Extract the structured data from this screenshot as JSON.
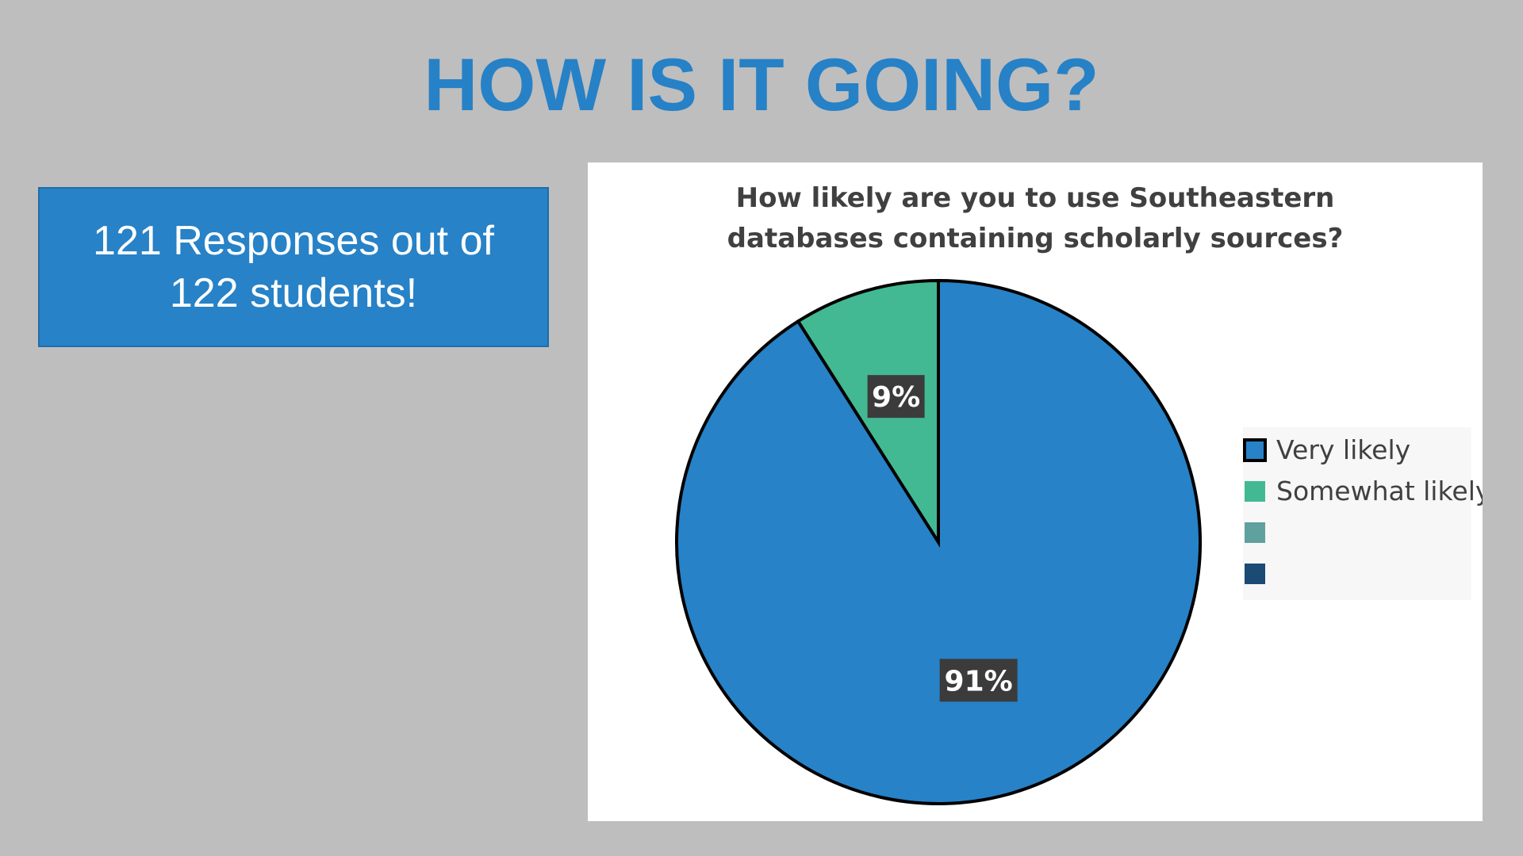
{
  "slide": {
    "title": "HOW IS IT GOING?",
    "responses_text": "121 Responses out of 122 students!"
  },
  "colors": {
    "background": "#bebebe",
    "accent": "#2681c7",
    "very_likely": "#2782c7",
    "somewhat_likely": "#42b993",
    "series3": "#5fa19e",
    "series4": "#1b4a75"
  },
  "chart_data": {
    "type": "pie",
    "title": "How likely are you to use Southeastern databases containing scholarly sources?",
    "title_lines": [
      "How likely are you to use Southeastern",
      "databases containing scholarly sources?"
    ],
    "categories": [
      "Very likely",
      "Somewhat likely",
      "",
      ""
    ],
    "values": [
      91,
      9,
      0,
      0
    ],
    "value_labels": [
      "91%",
      "9%",
      "",
      ""
    ],
    "legend_position": "right"
  }
}
